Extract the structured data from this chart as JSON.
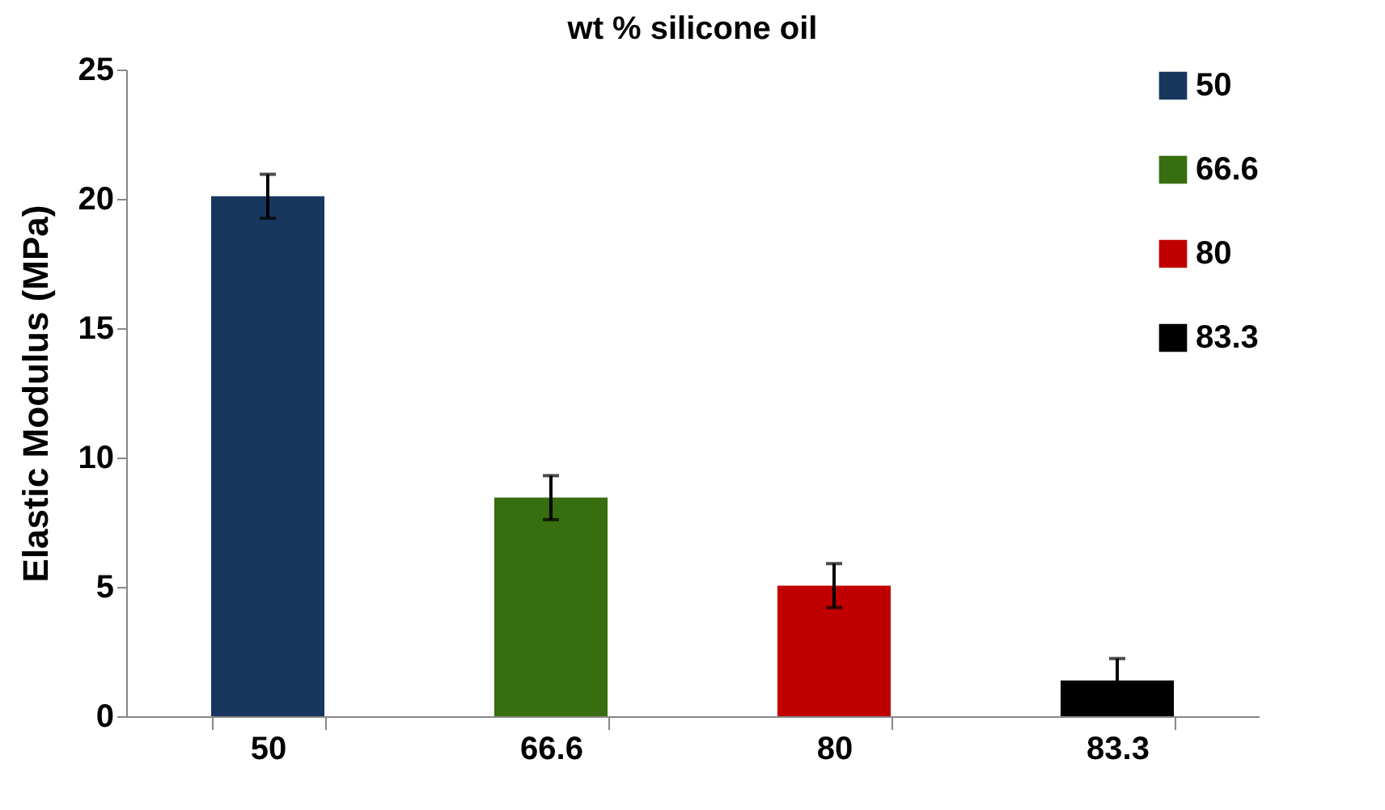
{
  "chart_data": {
    "type": "bar",
    "title": "wt % silicone oil",
    "ylabel": "Elastic Modulus (MPa)",
    "categories": [
      "50",
      "66.6",
      "80",
      "83.3"
    ],
    "series": [
      {
        "name": "50",
        "color": "#17375e",
        "values": [
          20.1,
          null,
          null,
          null
        ],
        "errors": [
          0.85,
          null,
          null,
          null
        ]
      },
      {
        "name": "66.6",
        "color": "#376e0f",
        "values": [
          null,
          8.45,
          null,
          null
        ],
        "errors": [
          null,
          0.85,
          null,
          null
        ]
      },
      {
        "name": "80",
        "color": "#c00000",
        "values": [
          null,
          null,
          5.05,
          null
        ],
        "errors": [
          null,
          null,
          0.85,
          null
        ]
      },
      {
        "name": "83.3",
        "color": "#000000",
        "values": [
          null,
          null,
          null,
          1.38
        ],
        "errors": [
          null,
          null,
          null,
          0.85
        ]
      }
    ],
    "ylim": [
      0,
      25
    ],
    "yticks": [
      0,
      5,
      10,
      15,
      20,
      25
    ],
    "grid": false,
    "legend": "top right"
  }
}
